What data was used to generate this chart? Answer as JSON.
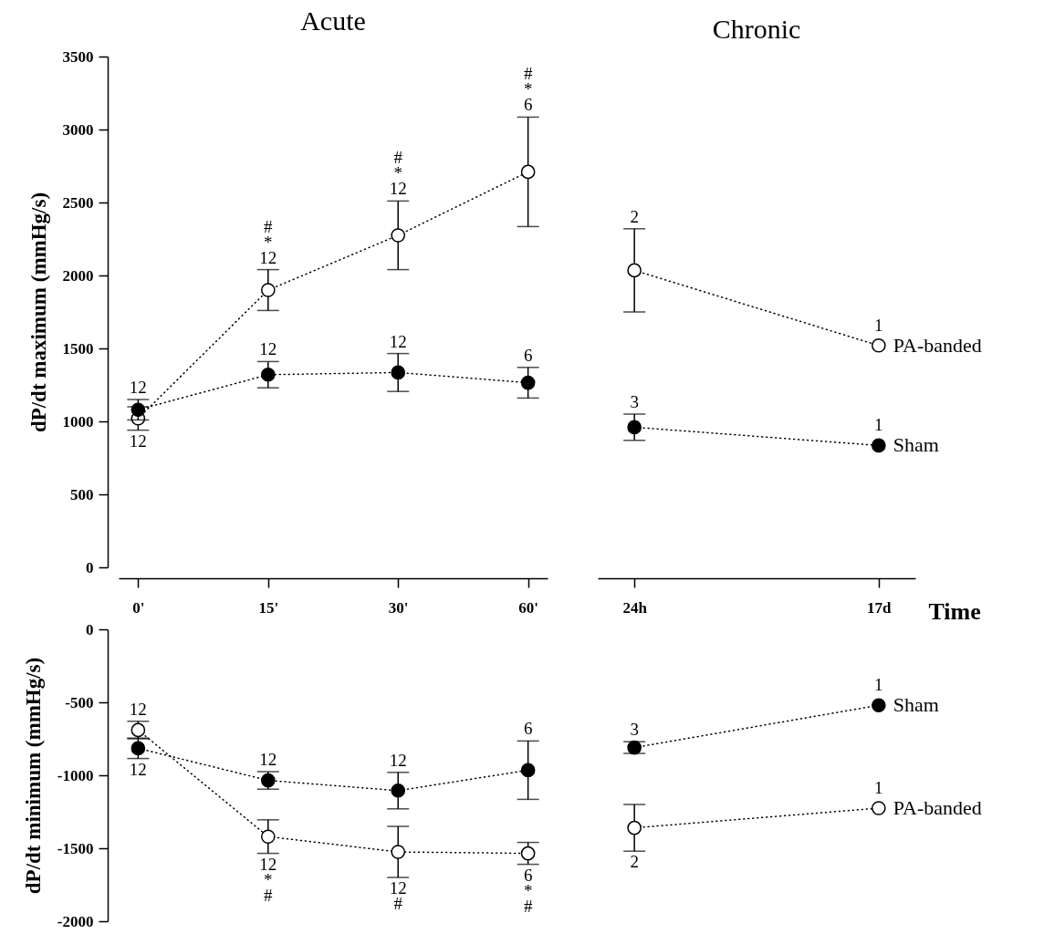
{
  "chart_data": [
    {
      "type": "line",
      "title": "Acute",
      "ylabel": "dP/dt maximum (mmHg/s)",
      "categories": [
        "0'",
        "15'",
        "30'",
        "60'"
      ],
      "ylim": [
        0,
        3500
      ],
      "yticks": [
        0,
        500,
        1000,
        1500,
        2000,
        2500,
        3000,
        3500
      ],
      "marker": "circle",
      "line_style": "dotted",
      "series": [
        {
          "color": "#ffffff",
          "values": [
            1020,
            1900,
            2275,
            2710
          ],
          "errors": [
            80,
            140,
            235,
            375
          ]
        },
        {
          "color": "#000000",
          "values": [
            1080,
            1320,
            1335,
            1265
          ],
          "errors": [
            70,
            90,
            130,
            105
          ]
        }
      ],
      "annotations": [
        {
          "text": "12",
          "x": "0'",
          "y": 1150
        },
        {
          "text": "12",
          "x": "0'",
          "y": 940
        },
        {
          "text": "#\n*\n12",
          "x": "15'",
          "y": 2040
        },
        {
          "text": "12",
          "x": "15'",
          "y": 1410
        },
        {
          "text": "#\n*\n12",
          "x": "30'",
          "y": 2510
        },
        {
          "text": "12",
          "x": "30'",
          "y": 1465
        },
        {
          "text": "#\n*\n6",
          "x": "60'",
          "y": 3085
        },
        {
          "text": "6",
          "x": "60'",
          "y": 1370
        }
      ]
    },
    {
      "type": "line",
      "title": "Chronic",
      "xlabel": "Time",
      "categories": [
        "24h",
        "17d"
      ],
      "ylim": [
        0,
        3500
      ],
      "tick_labels": "x",
      "marker": "circle",
      "line_style": "dotted",
      "series": [
        {
          "name": "PA-banded",
          "color": "#ffffff",
          "values": [
            2035,
            1520
          ],
          "errors": [
            285,
            null
          ]
        },
        {
          "name": "Sham",
          "color": "#000000",
          "values": [
            960,
            835
          ],
          "errors": [
            90,
            null
          ]
        }
      ],
      "annotations": [
        {
          "text": "2",
          "x": "24h",
          "y": 2320
        },
        {
          "text": "3",
          "x": "24h",
          "y": 1050
        },
        {
          "text": "1",
          "x": "17d",
          "y": 1520
        },
        {
          "text": "1",
          "x": "17d",
          "y": 835
        }
      ]
    },
    {
      "type": "line",
      "ylabel": "dP/dt minimum (mmHg/s)",
      "categories": [
        "0'",
        "15'",
        "30'",
        "60'"
      ],
      "ylim": [
        -2000,
        0
      ],
      "yticks": [
        -2000,
        -1500,
        -1000,
        -500,
        0
      ],
      "tick_labels": "y",
      "marker": "circle",
      "line_style": "dotted",
      "series": [
        {
          "color": "#ffffff",
          "values": [
            -690,
            -1420,
            -1525,
            -1535
          ],
          "errors": [
            60,
            115,
            175,
            75
          ]
        },
        {
          "color": "#000000",
          "values": [
            -815,
            -1035,
            -1105,
            -965
          ],
          "errors": [
            70,
            60,
            125,
            200
          ]
        }
      ],
      "annotations": [
        {
          "text": "12",
          "x": "0'",
          "y": -630
        },
        {
          "text": "12",
          "x": "0'",
          "y": -885
        },
        {
          "text": "12",
          "x": "15'",
          "y": -975
        },
        {
          "text": "12\n*\n#",
          "x": "15'",
          "y": -1535
        },
        {
          "text": "12",
          "x": "30'",
          "y": -980
        },
        {
          "text": "12\n#",
          "x": "30'",
          "y": -1700
        },
        {
          "text": "6",
          "x": "60'",
          "y": -765
        },
        {
          "text": "6\n*\n#",
          "x": "60'",
          "y": -1610
        }
      ]
    },
    {
      "type": "line",
      "categories": [
        "24h",
        "17d"
      ],
      "ylim": [
        -2000,
        0
      ],
      "tick_labels": false,
      "marker": "circle",
      "line_style": "dotted",
      "series": [
        {
          "name": "Sham",
          "color": "#000000",
          "values": [
            -810,
            -520
          ],
          "errors": [
            40,
            null
          ]
        },
        {
          "name": "PA-banded",
          "color": "#ffffff",
          "values": [
            -1360,
            -1225
          ],
          "errors": [
            160,
            null
          ]
        }
      ],
      "annotations": [
        {
          "text": "3",
          "x": "24h",
          "y": -770
        },
        {
          "text": "1",
          "x": "17d",
          "y": -520
        },
        {
          "text": "2",
          "x": "24h",
          "y": -1520
        },
        {
          "text": "1",
          "x": "17d",
          "y": -1225
        }
      ]
    }
  ]
}
